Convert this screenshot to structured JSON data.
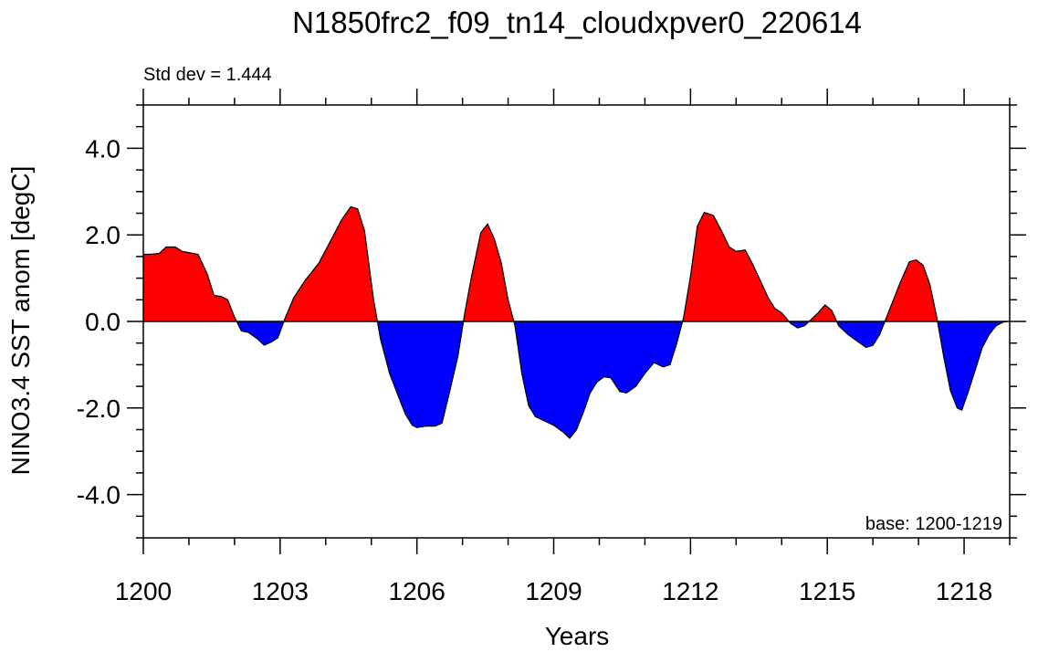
{
  "chart_data": {
    "type": "area",
    "title": "N1850frc2_f09_tn14_cloudxpver0_220614",
    "xlabel": "Years",
    "ylabel": "NINO3.4 SST anom [degC]",
    "annotation_left": "Std dev = 1.444",
    "annotation_right": "base: 1200-1219",
    "xlim": [
      1200,
      1219
    ],
    "ylim": [
      -5,
      5
    ],
    "x_ticks": [
      1200,
      1203,
      1206,
      1209,
      1212,
      1215,
      1218
    ],
    "x_tick_labels": [
      "1200",
      "1203",
      "1206",
      "1209",
      "1212",
      "1215",
      "1218"
    ],
    "y_ticks": [
      -4,
      -2,
      0,
      2,
      4
    ],
    "y_tick_labels": [
      "-4.0",
      "-2.0",
      "0.0",
      "2.0",
      "4.0"
    ],
    "positive_color": "#ff0000",
    "negative_color": "#0000ff",
    "x": [
      1200.0,
      1200.15,
      1200.35,
      1200.5,
      1200.7,
      1200.85,
      1201.05,
      1201.2,
      1201.4,
      1201.55,
      1201.7,
      1201.85,
      1202.0,
      1202.15,
      1202.3,
      1202.5,
      1202.65,
      1202.8,
      1202.95,
      1203.1,
      1203.3,
      1203.55,
      1203.85,
      1204.1,
      1204.35,
      1204.55,
      1204.7,
      1204.85,
      1205.05,
      1205.2,
      1205.4,
      1205.6,
      1205.75,
      1205.9,
      1206.0,
      1206.2,
      1206.4,
      1206.55,
      1206.7,
      1206.9,
      1207.05,
      1207.2,
      1207.4,
      1207.55,
      1207.7,
      1207.85,
      1208.0,
      1208.15,
      1208.3,
      1208.45,
      1208.6,
      1208.8,
      1209.0,
      1209.2,
      1209.35,
      1209.5,
      1209.65,
      1209.8,
      1209.95,
      1210.1,
      1210.25,
      1210.45,
      1210.6,
      1210.8,
      1211.0,
      1211.2,
      1211.4,
      1211.55,
      1211.7,
      1211.85,
      1212.0,
      1212.15,
      1212.3,
      1212.5,
      1212.7,
      1212.85,
      1213.0,
      1213.2,
      1213.35,
      1213.55,
      1213.7,
      1213.85,
      1214.0,
      1214.2,
      1214.35,
      1214.5,
      1214.65,
      1214.8,
      1214.95,
      1215.1,
      1215.25,
      1215.45,
      1215.65,
      1215.85,
      1216.0,
      1216.15,
      1216.3,
      1216.45,
      1216.6,
      1216.8,
      1216.95,
      1217.1,
      1217.25,
      1217.4,
      1217.55,
      1217.7,
      1217.85,
      1217.95,
      1218.1,
      1218.25,
      1218.4,
      1218.55,
      1218.7,
      1218.85,
      1218.95
    ],
    "y": [
      1.55,
      1.55,
      1.57,
      1.72,
      1.72,
      1.62,
      1.58,
      1.55,
      1.1,
      0.6,
      0.58,
      0.5,
      0.1,
      -0.22,
      -0.25,
      -0.4,
      -0.55,
      -0.48,
      -0.38,
      0.05,
      0.55,
      0.95,
      1.35,
      1.85,
      2.35,
      2.65,
      2.6,
      2.1,
      0.5,
      -0.4,
      -1.2,
      -1.75,
      -2.15,
      -2.4,
      -2.45,
      -2.42,
      -2.42,
      -2.35,
      -1.7,
      -0.8,
      0.2,
      1.05,
      2.05,
      2.25,
      1.9,
      1.35,
      0.5,
      -0.1,
      -1.2,
      -1.95,
      -2.2,
      -2.3,
      -2.4,
      -2.55,
      -2.7,
      -2.5,
      -2.1,
      -1.65,
      -1.4,
      -1.28,
      -1.3,
      -1.62,
      -1.65,
      -1.5,
      -1.2,
      -0.95,
      -1.05,
      -1.0,
      -0.5,
      0.1,
      1.05,
      2.2,
      2.52,
      2.45,
      2.05,
      1.72,
      1.62,
      1.65,
      1.35,
      0.9,
      0.55,
      0.3,
      0.2,
      -0.05,
      -0.15,
      -0.1,
      0.05,
      0.2,
      0.38,
      0.25,
      -0.1,
      -0.3,
      -0.45,
      -0.6,
      -0.55,
      -0.3,
      0.1,
      0.5,
      0.9,
      1.38,
      1.42,
      1.3,
      0.85,
      0.1,
      -0.8,
      -1.6,
      -2.0,
      -2.05,
      -1.6,
      -1.1,
      -0.6,
      -0.3,
      -0.1,
      -0.02,
      0.0
    ]
  }
}
